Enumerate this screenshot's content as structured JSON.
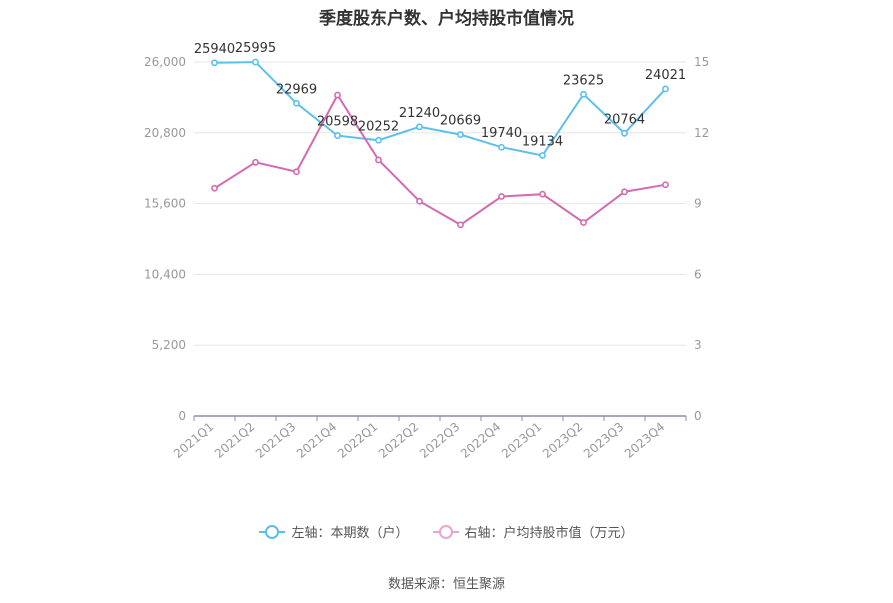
{
  "chart_data": {
    "type": "line",
    "title": "季度股东户数、户均持股市值情况",
    "categories": [
      "2021Q1",
      "2021Q2",
      "2021Q3",
      "2021Q4",
      "2022Q1",
      "2022Q2",
      "2022Q3",
      "2022Q4",
      "2023Q1",
      "2023Q2",
      "2023Q3",
      "2023Q4"
    ],
    "series": [
      {
        "name": "左轴：本期数（户）",
        "axis": "left",
        "color": "#5bc0eb",
        "values": [
          25940,
          25995,
          22969,
          20598,
          20252,
          21240,
          20669,
          19740,
          19134,
          23625,
          20764,
          24021
        ],
        "labels": [
          "25940",
          "25995",
          "22969",
          "20598",
          "20252",
          "21240",
          "20669",
          "19740",
          "19134",
          "23625",
          "20764",
          "24021"
        ]
      },
      {
        "name": "右轴：户均持股市值（万元）",
        "axis": "right",
        "color": "#d46ab1",
        "values": [
          9.65,
          10.75,
          10.35,
          13.6,
          10.85,
          9.1,
          8.1,
          9.3,
          9.4,
          8.2,
          9.5,
          9.8
        ]
      }
    ],
    "left_axis": {
      "ylim": [
        0,
        26000
      ],
      "ticks": [
        "0",
        "5,200",
        "10,400",
        "15,600",
        "20,800",
        "26,000"
      ]
    },
    "right_axis": {
      "ylim": [
        0,
        15
      ],
      "ticks": [
        "0",
        "3",
        "6",
        "9",
        "12",
        "15"
      ]
    },
    "grid": true,
    "legend_position": "bottom"
  },
  "legend": {
    "left_label": "左轴：本期数（户）",
    "right_label": "右轴：户均持股市值（万元）"
  },
  "source": "数据来源：恒生聚源"
}
